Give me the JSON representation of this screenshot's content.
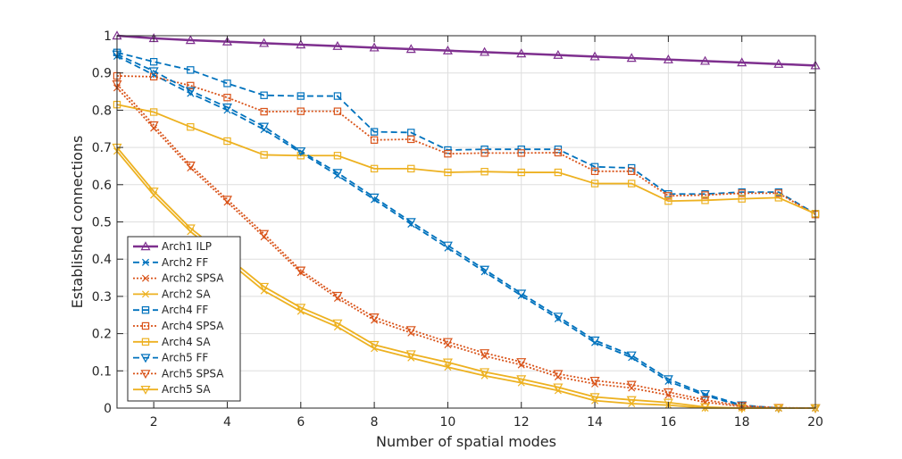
{
  "chart_data": {
    "type": "line",
    "xlabel": "Number of spatial modes",
    "ylabel": "Established connections",
    "xlim": [
      1,
      20
    ],
    "ylim": [
      0,
      1
    ],
    "xticks": [
      2,
      4,
      6,
      8,
      10,
      12,
      14,
      16,
      18,
      20
    ],
    "yticks": [
      0,
      0.1,
      0.2,
      0.3,
      0.4,
      0.5,
      0.6,
      0.7,
      0.8,
      0.9,
      1
    ],
    "ytick_labels": [
      "0",
      "0.1",
      "0.2",
      "0.3",
      "0.4",
      "0.5",
      "0.6",
      "0.7",
      "0.8",
      "0.9",
      "1"
    ],
    "grid": true,
    "legend_position": "lower-left",
    "x": [
      1,
      2,
      3,
      4,
      5,
      6,
      7,
      8,
      9,
      10,
      11,
      12,
      13,
      14,
      15,
      16,
      17,
      18,
      19,
      20
    ],
    "series": [
      {
        "name": "Arch1 ILP",
        "color": "#7E2F8E",
        "dash": "solid",
        "marker": "triangle-up",
        "width": 2.5,
        "values": [
          1.0,
          0.993,
          0.988,
          0.984,
          0.98,
          0.976,
          0.972,
          0.968,
          0.964,
          0.96,
          0.956,
          0.952,
          0.948,
          0.944,
          0.94,
          0.936,
          0.932,
          0.928,
          0.924,
          0.92
        ]
      },
      {
        "name": "Arch2 FF",
        "color": "#0072BD",
        "dash": "dashed",
        "marker": "x",
        "width": 1.8,
        "values": [
          0.945,
          0.895,
          0.845,
          0.8,
          0.748,
          0.686,
          0.625,
          0.56,
          0.494,
          0.43,
          0.366,
          0.302,
          0.24,
          0.176,
          0.136,
          0.072,
          0.034,
          0.006,
          0.0,
          0.0
        ]
      },
      {
        "name": "Arch2 SPSA",
        "color": "#D95319",
        "dash": "dotted",
        "marker": "x",
        "width": 1.8,
        "values": [
          0.86,
          0.752,
          0.645,
          0.553,
          0.46,
          0.364,
          0.295,
          0.236,
          0.202,
          0.17,
          0.14,
          0.116,
          0.084,
          0.065,
          0.054,
          0.035,
          0.016,
          0.004,
          0.0,
          0.0
        ]
      },
      {
        "name": "Arch2 SA",
        "color": "#EDB120",
        "dash": "solid",
        "marker": "x",
        "width": 1.8,
        "values": [
          0.69,
          0.572,
          0.474,
          0.396,
          0.315,
          0.26,
          0.218,
          0.16,
          0.135,
          0.11,
          0.087,
          0.068,
          0.047,
          0.02,
          0.012,
          0.008,
          0.0,
          0.0,
          0.0,
          0.0
        ]
      },
      {
        "name": "Arch4 FF",
        "color": "#0072BD",
        "dash": "dashed",
        "marker": "square",
        "width": 1.8,
        "values": [
          0.955,
          0.93,
          0.908,
          0.872,
          0.84,
          0.838,
          0.838,
          0.742,
          0.74,
          0.693,
          0.695,
          0.695,
          0.695,
          0.648,
          0.645,
          0.575,
          0.575,
          0.58,
          0.58,
          0.522
        ]
      },
      {
        "name": "Arch4 SPSA",
        "color": "#D95319",
        "dash": "dotted",
        "marker": "square",
        "width": 1.8,
        "values": [
          0.892,
          0.89,
          0.866,
          0.834,
          0.796,
          0.797,
          0.797,
          0.72,
          0.722,
          0.683,
          0.685,
          0.685,
          0.686,
          0.636,
          0.636,
          0.57,
          0.572,
          0.577,
          0.577,
          0.52
        ]
      },
      {
        "name": "Arch4 SA",
        "color": "#EDB120",
        "dash": "solid",
        "marker": "square",
        "width": 1.8,
        "values": [
          0.815,
          0.795,
          0.755,
          0.717,
          0.68,
          0.678,
          0.678,
          0.643,
          0.643,
          0.633,
          0.635,
          0.633,
          0.633,
          0.603,
          0.603,
          0.556,
          0.558,
          0.562,
          0.565,
          0.522
        ]
      },
      {
        "name": "Arch5 FF",
        "color": "#0072BD",
        "dash": "dashed",
        "marker": "triangle-down",
        "width": 1.8,
        "values": [
          0.95,
          0.905,
          0.852,
          0.808,
          0.756,
          0.69,
          0.632,
          0.566,
          0.5,
          0.437,
          0.372,
          0.308,
          0.246,
          0.182,
          0.142,
          0.078,
          0.038,
          0.008,
          0.0,
          0.0
        ]
      },
      {
        "name": "Arch5 SPSA",
        "color": "#D95319",
        "dash": "dotted",
        "marker": "triangle-down",
        "width": 1.8,
        "values": [
          0.87,
          0.76,
          0.652,
          0.56,
          0.468,
          0.37,
          0.302,
          0.244,
          0.21,
          0.178,
          0.148,
          0.124,
          0.092,
          0.074,
          0.063,
          0.043,
          0.022,
          0.006,
          0.001,
          0.0
        ]
      },
      {
        "name": "Arch5 SA",
        "color": "#EDB120",
        "dash": "solid",
        "marker": "triangle-down",
        "width": 1.8,
        "values": [
          0.7,
          0.582,
          0.483,
          0.406,
          0.326,
          0.27,
          0.228,
          0.17,
          0.145,
          0.123,
          0.097,
          0.078,
          0.056,
          0.03,
          0.022,
          0.015,
          0.003,
          0.0,
          0.0,
          0.0
        ]
      }
    ]
  }
}
